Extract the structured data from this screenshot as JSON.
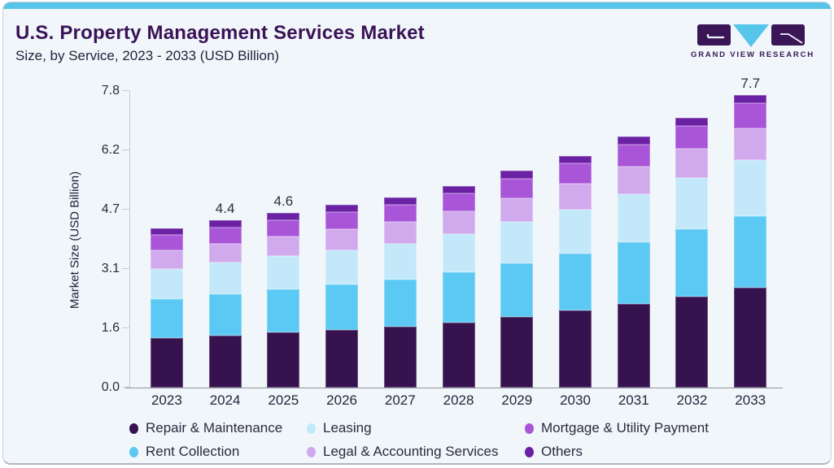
{
  "logo": {
    "text": "GRAND VIEW RESEARCH"
  },
  "colors": {
    "top_strip": "#58c4e8",
    "card_background": "#f0f6fa",
    "title_text": "#3a1356",
    "logo_purple": "#3a1656",
    "logo_blue": "#56c5ea",
    "axis_line": "#c5ccd3",
    "baseline": "#8f969e"
  },
  "chart_data": {
    "type": "bar",
    "stacked": true,
    "title": "U.S. Property Management Services Market",
    "subtitle": "Size, by Service, 2023 - 2033 (USD Billion)",
    "xlabel": "",
    "ylabel": "Market Size (USD Billion)",
    "ylim": [
      0,
      7.8
    ],
    "ytick_labels": [
      "0.0",
      "1.6",
      "3.1",
      "4.7",
      "6.2",
      "7.8"
    ],
    "grid": false,
    "legend_position": "bottom",
    "categories": [
      "2023",
      "2024",
      "2025",
      "2026",
      "2027",
      "2028",
      "2029",
      "2030",
      "2031",
      "2032",
      "2033"
    ],
    "series": [
      {
        "name": "Repair & Maintenance",
        "color": "#36124e",
        "values": [
          1.3,
          1.37,
          1.45,
          1.52,
          1.6,
          1.72,
          1.86,
          2.02,
          2.2,
          2.4,
          2.62
        ]
      },
      {
        "name": "Rent Collection",
        "color": "#5bc9f3",
        "values": [
          1.04,
          1.09,
          1.14,
          1.19,
          1.24,
          1.31,
          1.41,
          1.51,
          1.63,
          1.76,
          1.9
        ]
      },
      {
        "name": "Leasing",
        "color": "#c2e8fa",
        "values": [
          0.79,
          0.83,
          0.87,
          0.91,
          0.95,
          1.01,
          1.08,
          1.16,
          1.25,
          1.35,
          1.46
        ]
      },
      {
        "name": "Legal & Accounting Services",
        "color": "#d0aaec",
        "values": [
          0.48,
          0.5,
          0.52,
          0.55,
          0.57,
          0.6,
          0.64,
          0.68,
          0.73,
          0.78,
          0.83
        ]
      },
      {
        "name": "Mortgage & Utility Payment",
        "color": "#a855d8",
        "values": [
          0.4,
          0.42,
          0.43,
          0.44,
          0.45,
          0.46,
          0.51,
          0.52,
          0.58,
          0.59,
          0.66
        ]
      },
      {
        "name": "Others",
        "color": "#6b21a4",
        "values": [
          0.19,
          0.19,
          0.19,
          0.19,
          0.19,
          0.2,
          0.2,
          0.21,
          0.21,
          0.22,
          0.23
        ]
      }
    ],
    "totals": [
      4.2,
      4.4,
      4.6,
      4.8,
      5.0,
      5.3,
      5.7,
      6.1,
      6.6,
      7.1,
      7.7
    ],
    "bar_value_labels": [
      "",
      "4.4",
      "4.6",
      "",
      "",
      "",
      "",
      "",
      "",
      "",
      "7.7"
    ],
    "legend_rows": [
      [
        "Repair & Maintenance",
        "Leasing",
        "Mortgage & Utility Payment"
      ],
      [
        "Rent Collection",
        "Legal & Accounting Services",
        "Others"
      ]
    ]
  }
}
